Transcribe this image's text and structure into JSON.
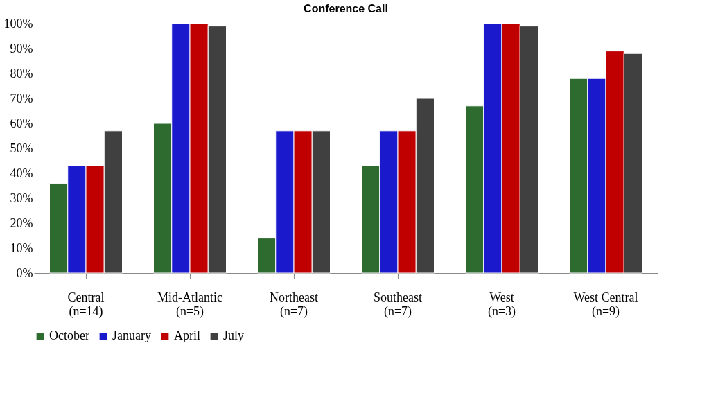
{
  "chart_data": {
    "type": "bar",
    "title": "Conference Call",
    "categories": [
      "Central\n(n=14)",
      "Mid-Atlantic\n(n=5)",
      "Northeast\n(n=7)",
      "Southeast\n(n=7)",
      "West\n(n=3)",
      "West Central\n(n=9)"
    ],
    "series": [
      {
        "name": "October",
        "color": "#2e6b2e",
        "values": [
          36,
          60,
          14,
          43,
          67,
          78
        ]
      },
      {
        "name": "January",
        "color": "#1a1acc",
        "values": [
          43,
          100,
          57,
          57,
          100,
          78
        ]
      },
      {
        "name": "April",
        "color": "#c00000",
        "values": [
          43,
          100,
          57,
          57,
          100,
          89
        ]
      },
      {
        "name": "July",
        "color": "#404040",
        "values": [
          57,
          99,
          57,
          70,
          99,
          88
        ]
      }
    ],
    "ylim": [
      0,
      100
    ],
    "yticks": [
      {
        "value": 0,
        "label": "0%"
      },
      {
        "value": 10,
        "label": "10%"
      },
      {
        "value": 20,
        "label": "20%"
      },
      {
        "value": 30,
        "label": "30%"
      },
      {
        "value": 40,
        "label": "40%"
      },
      {
        "value": 50,
        "label": "50%"
      },
      {
        "value": 60,
        "label": "60%"
      },
      {
        "value": 70,
        "label": "70%"
      },
      {
        "value": 80,
        "label": "80%"
      },
      {
        "value": 90,
        "label": "90%"
      },
      {
        "value": 100,
        "label": "100%"
      }
    ],
    "grid": false,
    "legend": "bottom"
  }
}
